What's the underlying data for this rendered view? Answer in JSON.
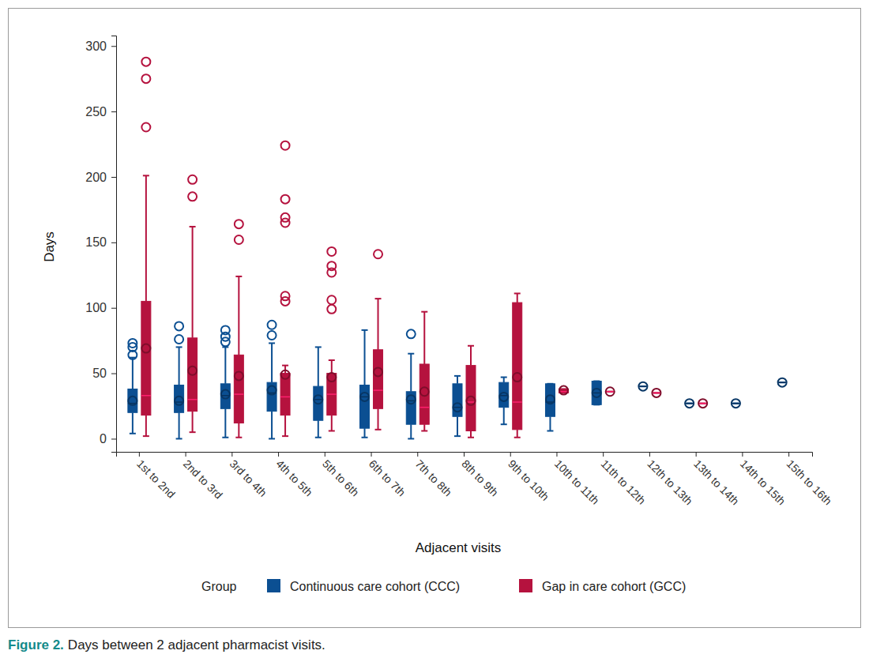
{
  "chart_data": {
    "type": "box",
    "title": "Days between 2 adjacent pharmacist visits.",
    "figure_label": "Figure 2.",
    "x_label": "Adjacent visits",
    "y_label": "Days",
    "legend_title": "Group",
    "legend": "bottom",
    "grid": false,
    "categories": [
      "1st to 2nd",
      "2nd to 3rd",
      "3rd to 4th",
      "4th to 5th",
      "5th to 6th",
      "6th to 7th",
      "7th to 8th",
      "8th to 9th",
      "9th to 10th",
      "10th to 11th",
      "11th to 12th",
      "12th to 13th",
      "13th to 14th",
      "14th to 15th",
      "15th to 16th"
    ],
    "ylim": [
      -10,
      308
    ],
    "yticks": [
      0,
      50,
      100,
      150,
      200,
      250,
      300
    ],
    "series": [
      {
        "name": "Continuous care cohort (CCC)",
        "color": "#0b4f92",
        "marker": "circle",
        "values": [
          29,
          29,
          34,
          37,
          30,
          32,
          30,
          24,
          32,
          30,
          35,
          40,
          27,
          27,
          43
        ],
        "whisker_low": [
          4,
          0,
          1,
          0,
          1,
          1,
          0,
          2,
          11,
          6,
          26,
          40,
          27,
          27,
          43
        ],
        "q1": [
          20,
          20,
          23,
          21,
          14,
          8,
          11,
          17,
          24,
          17,
          26,
          40,
          27,
          27,
          43
        ],
        "median": [
          27,
          28,
          33,
          35,
          30,
          32,
          29,
          24,
          33,
          28,
          35,
          40,
          27,
          27,
          43
        ],
        "q3": [
          38,
          41,
          42,
          43,
          40,
          41,
          36,
          42,
          43,
          42,
          44,
          40,
          27,
          27,
          43
        ],
        "whisker_high": [
          62,
          70,
          70,
          73,
          70,
          83,
          65,
          48,
          47,
          42,
          44,
          40,
          27,
          27,
          43
        ],
        "outliers": [
          [
            64,
            70,
            73
          ],
          [
            76,
            86
          ],
          [
            74,
            78,
            83
          ],
          [
            79,
            87
          ],
          [],
          [],
          [
            80
          ],
          [],
          [],
          [],
          [],
          [],
          [],
          [],
          []
        ]
      },
      {
        "name": "Gap in care cohort (GCC)",
        "color": "#b5123e",
        "marker": "circle",
        "values": [
          69,
          52,
          48,
          49,
          47,
          51,
          36,
          29,
          47,
          37,
          36,
          35,
          27,
          null,
          null
        ],
        "whisker_low": [
          2,
          5,
          1,
          2,
          6,
          7,
          6,
          1,
          1,
          35,
          36,
          35,
          27,
          null,
          null
        ],
        "q1": [
          18,
          21,
          12,
          18,
          18,
          23,
          11,
          6,
          7,
          35,
          36,
          35,
          27,
          null,
          null
        ],
        "median": [
          33,
          30,
          34,
          32,
          34,
          37,
          24,
          28,
          28,
          36,
          36,
          35,
          27,
          null,
          null
        ],
        "q3": [
          105,
          77,
          64,
          50,
          50,
          68,
          57,
          56,
          104,
          38,
          36,
          35,
          27,
          null,
          null
        ],
        "whisker_high": [
          201,
          162,
          124,
          56,
          60,
          107,
          97,
          71,
          111,
          38,
          36,
          35,
          27,
          null,
          null
        ],
        "outliers": [
          [
            238,
            275,
            288
          ],
          [
            185,
            198
          ],
          [
            152,
            164
          ],
          [
            105,
            109,
            165,
            169,
            183,
            224
          ],
          [
            99,
            106,
            127,
            132,
            143
          ],
          [
            141
          ],
          [],
          [],
          [],
          [],
          [],
          [],
          [],
          [],
          []
        ]
      }
    ]
  }
}
